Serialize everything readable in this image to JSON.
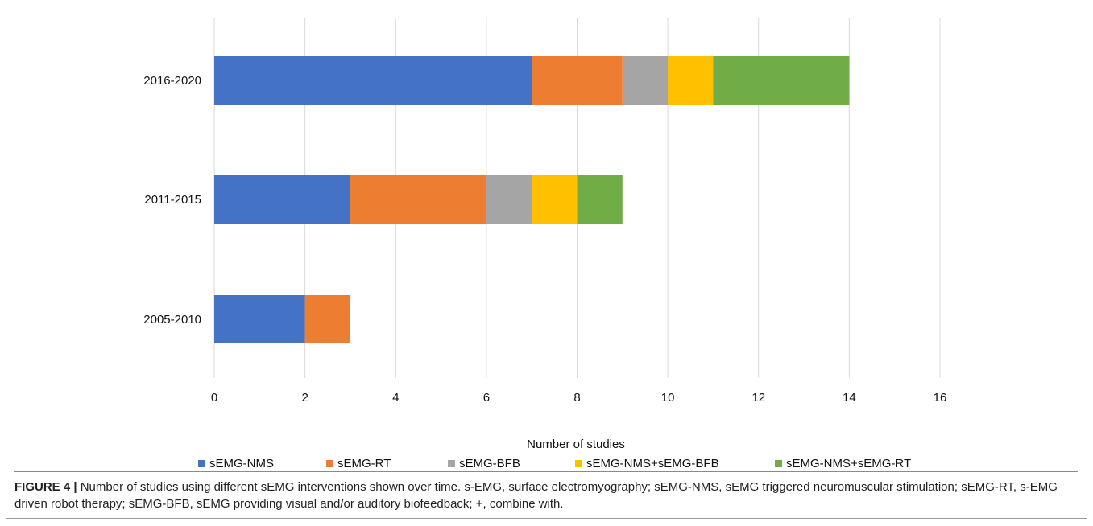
{
  "chart_data": {
    "type": "bar",
    "orientation": "horizontal",
    "stacked": true,
    "categories": [
      "2016-2020",
      "2011-2015",
      "2005-2010"
    ],
    "series": [
      {
        "name": "sEMG-NMS",
        "color": "#4472C4",
        "values": [
          7,
          3,
          2
        ]
      },
      {
        "name": "sEMG-RT",
        "color": "#ED7D31",
        "values": [
          2,
          3,
          1
        ]
      },
      {
        "name": "sEMG-BFB",
        "color": "#A5A5A5",
        "values": [
          1,
          1,
          0
        ]
      },
      {
        "name": "sEMG-NMS+sEMG-BFB",
        "color": "#FFC000",
        "values": [
          1,
          1,
          0
        ]
      },
      {
        "name": "sEMG-NMS+sEMG-RT",
        "color": "#70AD47",
        "values": [
          3,
          1,
          0
        ]
      }
    ],
    "xlabel": "Number of studies",
    "ylabel": "",
    "xlim": [
      0,
      16
    ],
    "xticks": [
      "0",
      "2",
      "4",
      "6",
      "8",
      "10",
      "12",
      "14",
      "16"
    ],
    "grid": true,
    "legend": "bottom"
  },
  "caption": {
    "label": "FIGURE 4 |",
    "text": "Number of studies using different sEMG interventions shown over time. s-EMG, surface electromyography; sEMG-NMS, sEMG triggered neuromuscular stimulation; sEMG-RT, s-EMG driven robot therapy; sEMG-BFB, sEMG providing visual and/or auditory biofeedback; +, combine with."
  }
}
